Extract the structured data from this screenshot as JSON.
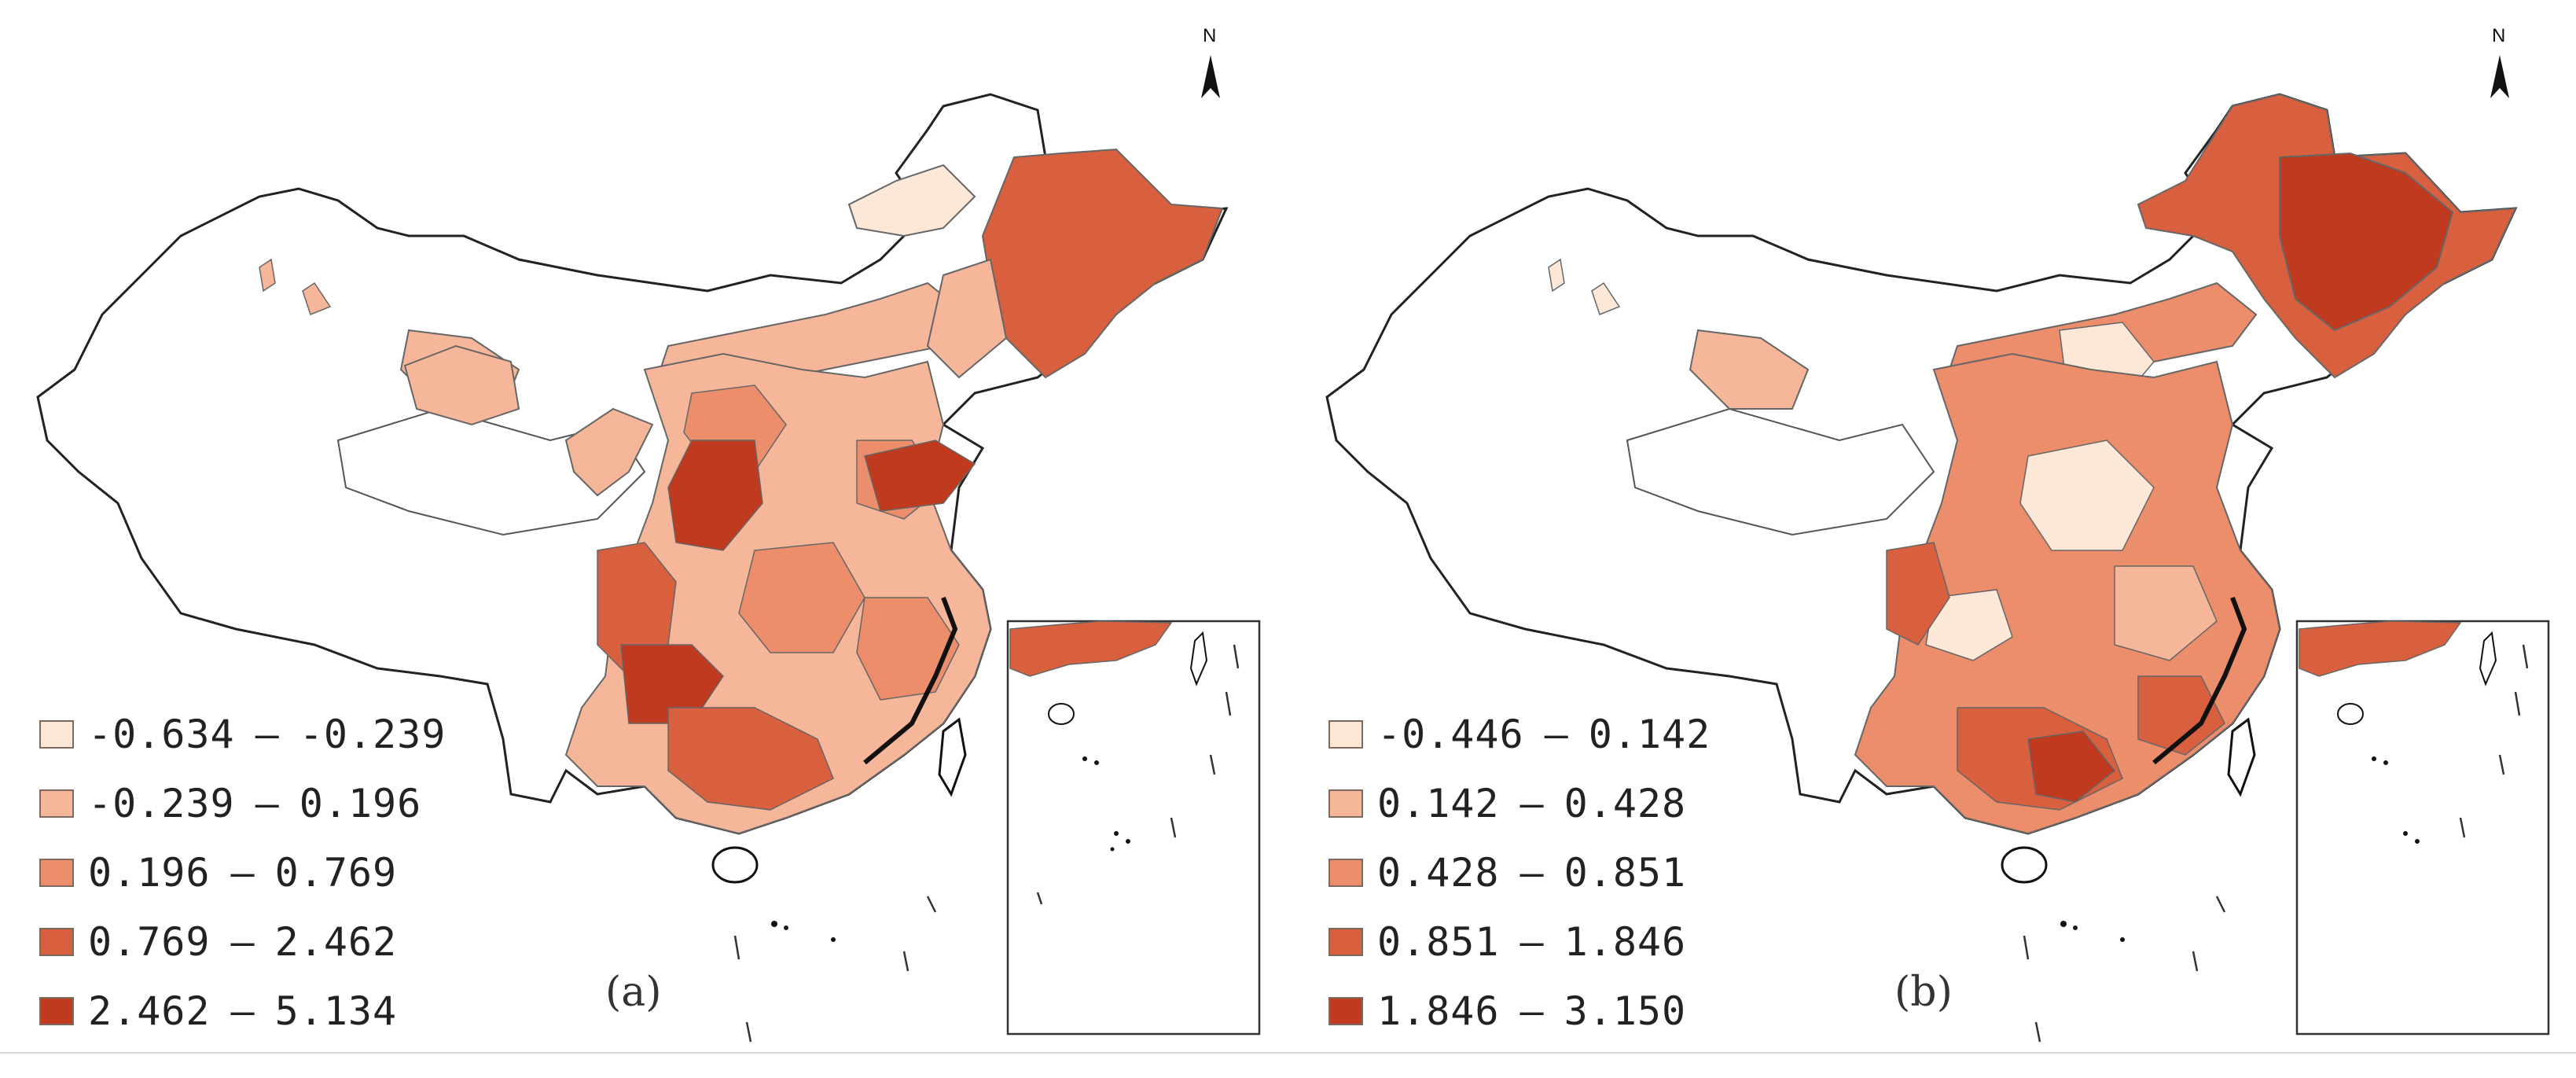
{
  "panels": [
    {
      "label": "(a)",
      "north": "N",
      "legend": [
        {
          "from": "-0.634",
          "to": "-0.239",
          "color": "#fde8d8"
        },
        {
          "from": "-0.239",
          "to": "0.196",
          "color": "#f6b69a"
        },
        {
          "from": "0.196",
          "to": "0.769",
          "color": "#ec8d6b"
        },
        {
          "from": "0.769",
          "to": "2.462",
          "color": "#d9603f"
        },
        {
          "from": "2.462",
          "to": "5.134",
          "color": "#bf3a1f"
        }
      ]
    },
    {
      "label": "(b)",
      "north": "N",
      "legend": [
        {
          "from": "-0.446",
          "to": "0.142",
          "color": "#fde8d8"
        },
        {
          "from": "0.142",
          "to": "0.428",
          "color": "#f6b69a"
        },
        {
          "from": "0.428",
          "to": "0.851",
          "color": "#ec8d6b"
        },
        {
          "from": "0.851",
          "to": "1.846",
          "color": "#d9603f"
        },
        {
          "from": "1.846",
          "to": "3.150",
          "color": "#bf3a1f"
        }
      ]
    }
  ]
}
